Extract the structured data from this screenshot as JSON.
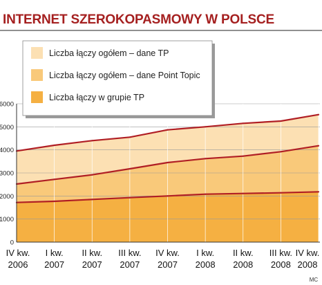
{
  "title": "INTERNET SZEROKOPASMOWY W POLSCE",
  "credit": "MC",
  "colors": {
    "title": "#a52020",
    "line": "#b01e24",
    "band_total": "#fce0b3",
    "band_point_topic": "#f9c97a",
    "band_group": "#f5b042",
    "grid": "#999999"
  },
  "chart_data": {
    "type": "area",
    "categories": [
      [
        "IV kw.",
        "2006"
      ],
      [
        "I kw.",
        "2007"
      ],
      [
        "II kw.",
        "2007"
      ],
      [
        "III kw.",
        "2007"
      ],
      [
        "IV kw.",
        "2007"
      ],
      [
        "I kw.",
        "2008"
      ],
      [
        "II kw.",
        "2008"
      ],
      [
        "III kw.",
        "2008"
      ],
      [
        "IV kw.",
        "2008"
      ]
    ],
    "ylim": [
      0,
      6000
    ],
    "yticks": [
      0,
      1000,
      2000,
      3000,
      4000,
      5000,
      6000
    ],
    "grid": true,
    "legend_position": "top",
    "series": [
      {
        "name": "Liczba łączy ogółem – dane TP",
        "values": [
          3950,
          4200,
          4400,
          4550,
          4870,
          5000,
          5150,
          5250,
          5530
        ],
        "color": "#fce0b3"
      },
      {
        "name": "Liczba łączy ogółem – dane Point Topic",
        "values": [
          2520,
          2720,
          2920,
          3180,
          3450,
          3620,
          3730,
          3920,
          4180
        ],
        "color": "#f9c97a"
      },
      {
        "name": "Liczba łączy w grupie TP",
        "values": [
          1720,
          1770,
          1850,
          1930,
          2000,
          2080,
          2110,
          2140,
          2180
        ],
        "color": "#f5b042"
      }
    ]
  }
}
